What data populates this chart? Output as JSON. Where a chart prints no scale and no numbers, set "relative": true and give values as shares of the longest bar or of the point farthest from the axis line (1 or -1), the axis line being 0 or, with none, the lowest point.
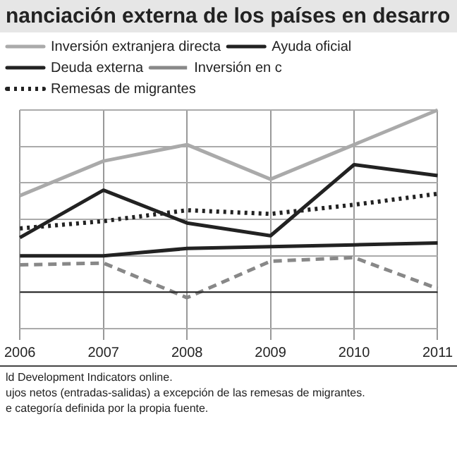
{
  "chart_data": {
    "type": "line",
    "title": "nanciación externa de los países en desarro",
    "relative": true,
    "categories": [
      "2006",
      "2007",
      "2008",
      "2009",
      "2010",
      "2011"
    ],
    "series": [
      {
        "name": "Inversión extranjera directa",
        "color": "#aaaaaa",
        "line_style": "solid",
        "values": [
          0.53,
          0.72,
          0.81,
          0.62,
          0.81,
          1
        ]
      },
      {
        "name": "Ayuda oficial",
        "color": "#222222",
        "line_style": "solid",
        "values": [
          0.2,
          0.2,
          0.24,
          0.25,
          0.26,
          0.27
        ]
      },
      {
        "name": "Deuda externa",
        "color": "#222222",
        "line_style": "solid",
        "values": [
          0.3,
          0.56,
          0.38,
          0.31,
          0.7,
          0.64
        ]
      },
      {
        "name": "Inversión en c",
        "color": "#888888",
        "line_style": "dashed",
        "values": [
          0.15,
          0.16,
          -0.03,
          0.17,
          0.19,
          0.02
        ]
      },
      {
        "name": "Remesas de migrantes",
        "color": "#222222",
        "line_style": "dotted",
        "values": [
          0.35,
          0.39,
          0.45,
          0.43,
          0.48,
          0.54
        ]
      }
    ],
    "grid": true,
    "legend": "top left",
    "marker": "none",
    "annotations": [
      "ld Development Indicators online.",
      "ujos netos (entradas-salidas) a excepción de las remesas de migrantes.",
      "e categoría definida por la propia fuente."
    ]
  }
}
